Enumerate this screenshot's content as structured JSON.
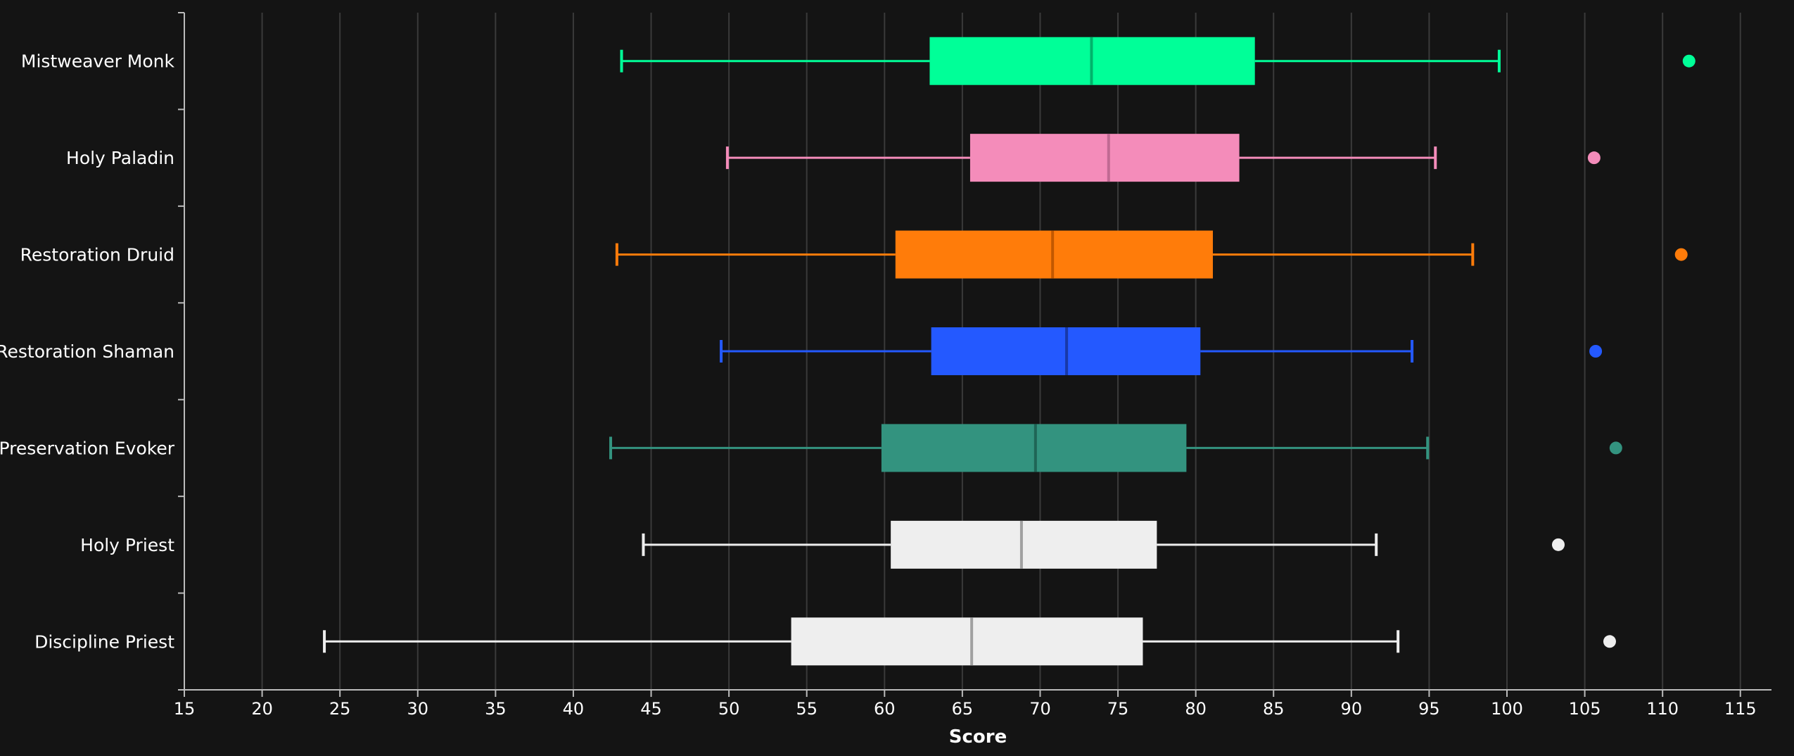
{
  "chart_data": {
    "type": "boxplot",
    "orientation": "horizontal",
    "xlabel": "Score",
    "ylabel": "",
    "xlim": [
      15,
      117
    ],
    "xticks": [
      15,
      20,
      25,
      30,
      35,
      40,
      45,
      50,
      55,
      60,
      65,
      70,
      75,
      80,
      85,
      90,
      95,
      100,
      105,
      110,
      115
    ],
    "grid": "vertical",
    "categories": [
      "Mistweaver Monk",
      "Holy Paladin",
      "Restoration Druid",
      "Restoration Shaman",
      "Preservation Evoker",
      "Holy Priest",
      "Discipline Priest"
    ],
    "series": [
      {
        "name": "Mistweaver Monk",
        "color": "#00ff98",
        "median_color": "#00b36b",
        "whisker_low": 43.1,
        "q1": 62.9,
        "median": 73.3,
        "q3": 83.8,
        "whisker_high": 99.5,
        "outliers": [
          111.7
        ]
      },
      {
        "name": "Holy Paladin",
        "color": "#f48cba",
        "median_color": "#c06a93",
        "whisker_low": 49.9,
        "q1": 65.5,
        "median": 74.4,
        "q3": 82.8,
        "whisker_high": 95.4,
        "outliers": [
          105.6
        ]
      },
      {
        "name": "Restoration Druid",
        "color": "#ff7c0a",
        "median_color": "#c25800",
        "whisker_low": 42.8,
        "q1": 60.7,
        "median": 70.8,
        "q3": 81.1,
        "whisker_high": 97.8,
        "outliers": [
          111.2
        ]
      },
      {
        "name": "Restoration Shaman",
        "color": "#2459ff",
        "median_color": "#1839a8",
        "whisker_low": 49.5,
        "q1": 63.0,
        "median": 71.7,
        "q3": 80.3,
        "whisker_high": 93.9,
        "outliers": [
          105.7
        ]
      },
      {
        "name": "Preservation Evoker",
        "color": "#33937f",
        "median_color": "#1f6556",
        "whisker_low": 42.4,
        "q1": 59.8,
        "median": 69.7,
        "q3": 79.4,
        "whisker_high": 94.9,
        "outliers": [
          107.0
        ]
      },
      {
        "name": "Holy Priest",
        "color": "#eeeeee",
        "median_color": "#a0a0a0",
        "whisker_low": 44.5,
        "q1": 60.4,
        "median": 68.8,
        "q3": 77.5,
        "whisker_high": 91.6,
        "outliers": [
          103.3
        ]
      },
      {
        "name": "Discipline Priest",
        "color": "#eeeeee",
        "median_color": "#a0a0a0",
        "whisker_low": 24.0,
        "q1": 54.0,
        "median": 65.6,
        "q3": 76.6,
        "whisker_high": 93.0,
        "outliers": [
          106.6
        ]
      }
    ]
  }
}
